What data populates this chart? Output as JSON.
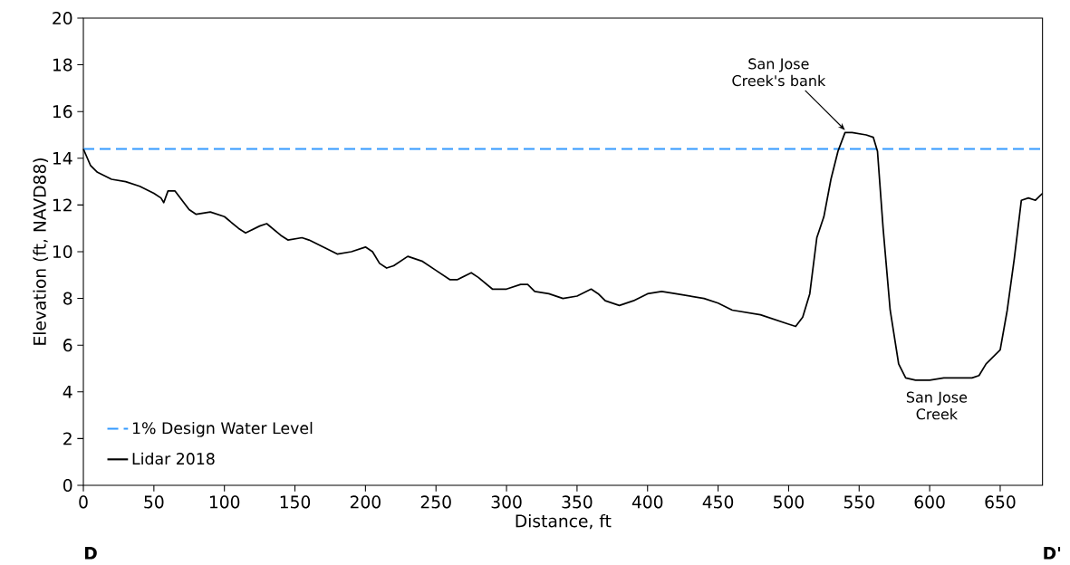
{
  "chart_data": {
    "type": "line",
    "xlabel": "Distance, ft",
    "ylabel": "Elevation (ft, NAVD88)",
    "xlim": [
      0,
      680
    ],
    "ylim": [
      0,
      20
    ],
    "xticks": [
      0,
      50,
      100,
      150,
      200,
      250,
      300,
      350,
      400,
      450,
      500,
      550,
      600,
      650
    ],
    "yticks": [
      0,
      2,
      4,
      6,
      8,
      10,
      12,
      14,
      16,
      18,
      20
    ],
    "x": [
      0,
      5,
      10,
      20,
      30,
      40,
      50,
      55,
      57,
      60,
      65,
      70,
      75,
      80,
      90,
      100,
      110,
      115,
      125,
      130,
      140,
      145,
      155,
      160,
      170,
      180,
      190,
      200,
      205,
      210,
      215,
      220,
      230,
      240,
      250,
      260,
      265,
      275,
      280,
      290,
      300,
      310,
      315,
      320,
      330,
      340,
      350,
      360,
      365,
      370,
      380,
      390,
      400,
      410,
      420,
      440,
      450,
      460,
      480,
      490,
      500,
      505,
      510,
      515,
      520,
      525,
      530,
      535,
      540,
      545,
      555,
      560,
      563,
      567,
      572,
      578,
      583,
      590,
      600,
      610,
      620,
      630,
      635,
      640,
      645,
      650,
      655,
      660,
      665,
      670,
      675,
      680
    ],
    "series": [
      {
        "name": "Lidar 2018",
        "color": "#000000",
        "values": [
          14.4,
          13.7,
          13.4,
          13.1,
          13.0,
          12.8,
          12.5,
          12.3,
          12.1,
          12.6,
          12.6,
          12.2,
          11.8,
          11.6,
          11.7,
          11.5,
          11.0,
          10.8,
          11.1,
          11.2,
          10.7,
          10.5,
          10.6,
          10.5,
          10.2,
          9.9,
          10.0,
          10.2,
          10.0,
          9.5,
          9.3,
          9.4,
          9.8,
          9.6,
          9.2,
          8.8,
          8.8,
          9.1,
          8.9,
          8.4,
          8.4,
          8.6,
          8.6,
          8.3,
          8.2,
          8.0,
          8.1,
          8.4,
          8.2,
          7.9,
          7.7,
          7.9,
          8.2,
          8.3,
          8.2,
          8.0,
          7.8,
          7.5,
          7.3,
          7.1,
          6.9,
          6.8,
          7.2,
          8.2,
          10.6,
          11.5,
          13.1,
          14.3,
          15.1,
          15.1,
          15.0,
          14.9,
          14.3,
          11.0,
          7.5,
          5.2,
          4.6,
          4.5,
          4.5,
          4.6,
          4.6,
          4.6,
          4.7,
          5.2,
          5.5,
          5.8,
          7.5,
          9.7,
          12.2,
          12.3,
          12.2,
          12.5
        ]
      }
    ],
    "ref_lines": [
      {
        "axis": "y",
        "value": 14.4,
        "label": "1% Design Water Level",
        "color": "#3399ff",
        "line_style": "dashed"
      }
    ],
    "annotations": [
      {
        "text": "San Jose Creek's bank",
        "x": 540,
        "y": 15.1
      },
      {
        "text": "San Jose Creek",
        "x": 605,
        "y": 4.5
      },
      "D",
      "D'"
    ],
    "legend": "bottom left",
    "grid": false,
    "marker": "none"
  }
}
